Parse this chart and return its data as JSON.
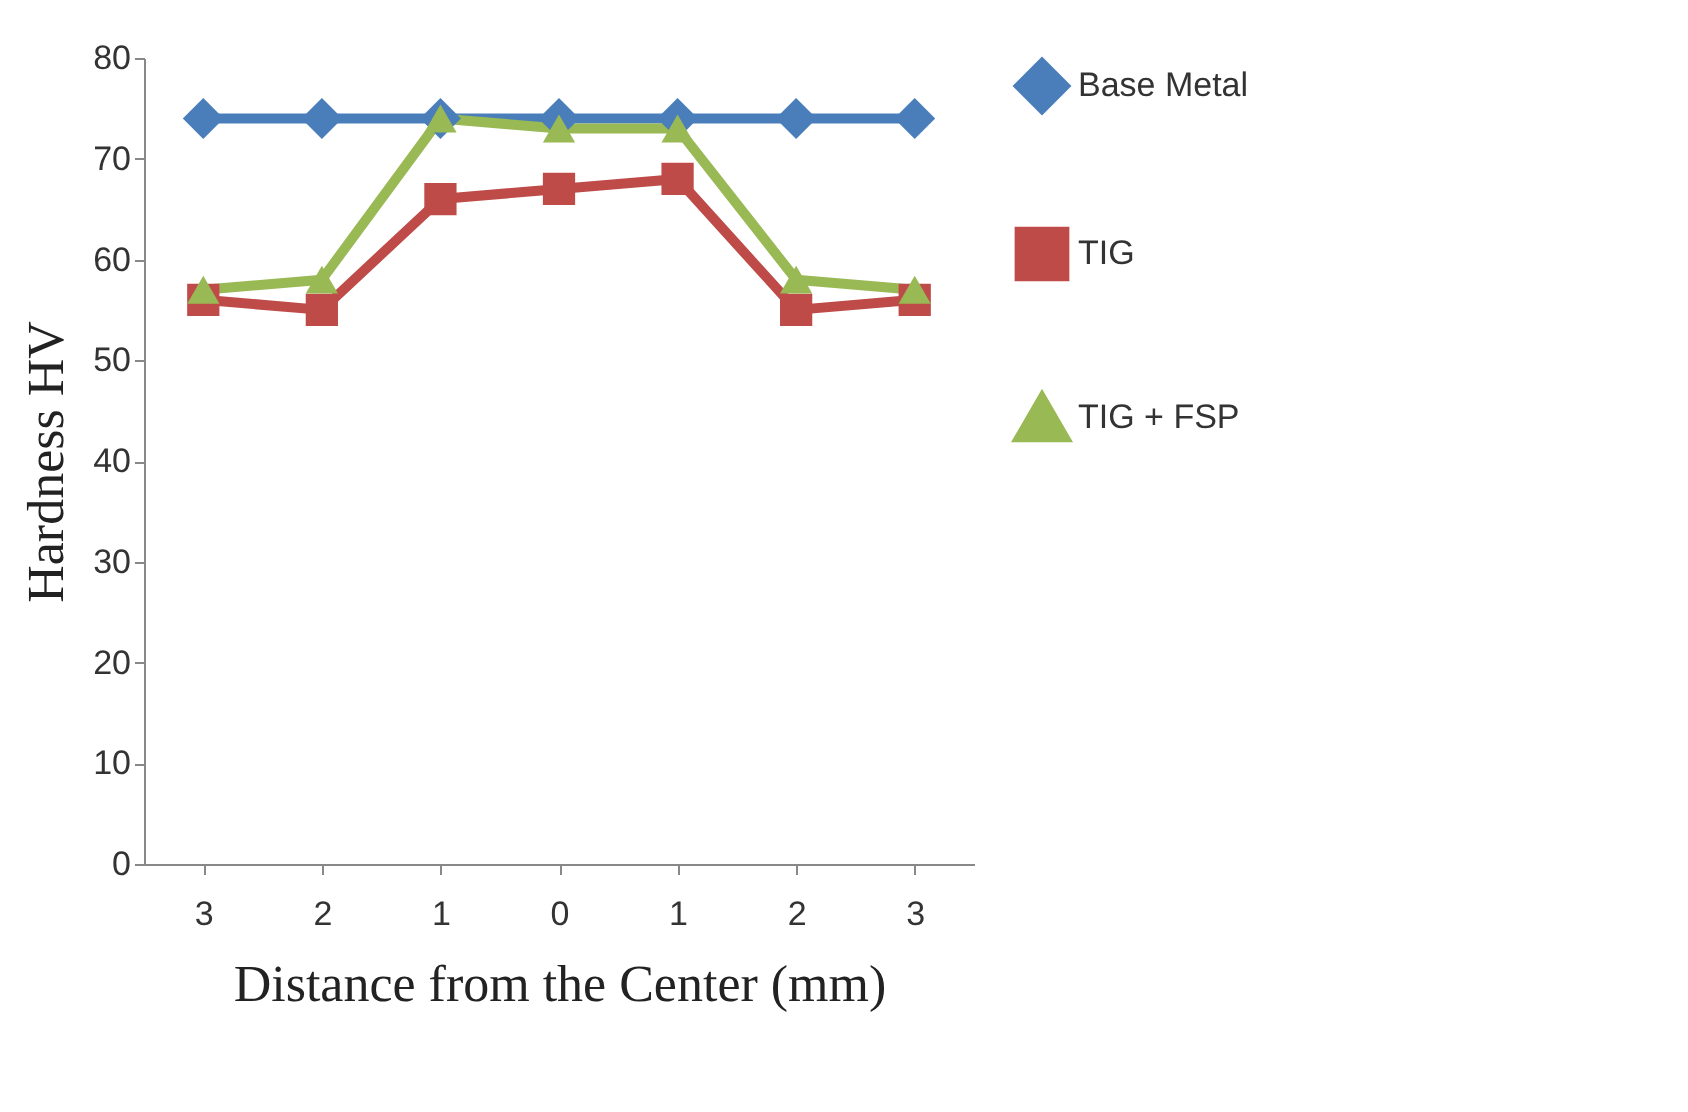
{
  "chart_data": {
    "type": "line",
    "xlabel": "Distance from the Center (mm)",
    "ylabel": "Hardness HV",
    "categories": [
      "3",
      "2",
      "1",
      "0",
      "1",
      "2",
      "3"
    ],
    "series": [
      {
        "name": "Base Metal",
        "color": "#4a7ebb",
        "marker": "diamond",
        "values": [
          74,
          74,
          74,
          74,
          74,
          74,
          74
        ]
      },
      {
        "name": "TIG",
        "color": "#be4b48",
        "marker": "square",
        "values": [
          56,
          55,
          66,
          67,
          68,
          55,
          56
        ]
      },
      {
        "name": "TIG + FSP",
        "color": "#98b954",
        "marker": "triangle",
        "values": [
          57,
          58,
          74,
          73,
          73,
          58,
          57
        ]
      }
    ],
    "ylim": [
      0,
      80
    ],
    "yticks": [
      0,
      10,
      20,
      30,
      40,
      50,
      60,
      70,
      80
    ],
    "grid": false,
    "legend": "right"
  }
}
